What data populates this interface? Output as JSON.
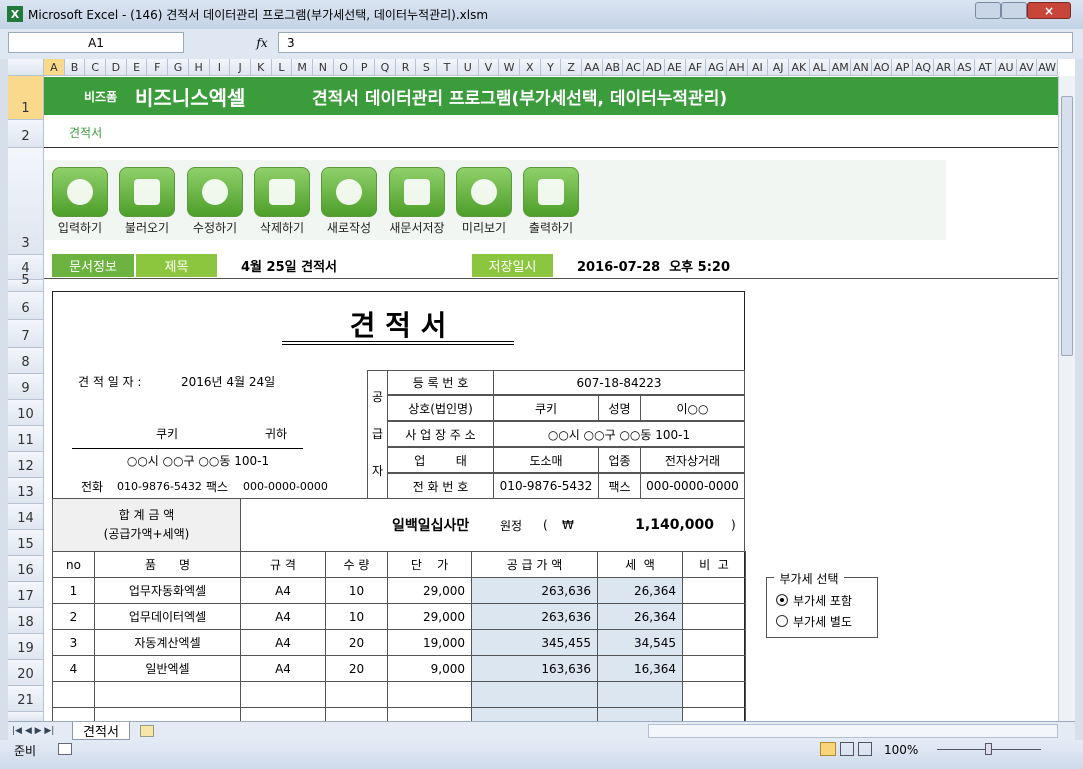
{
  "window": {
    "title": "Microsoft Excel - (146) 견적서 데이터관리 프로그램(부가세선택, 데이터누적관리).xlsm"
  },
  "formula_bar": {
    "cell": "A1",
    "fx": "fx",
    "value": "3"
  },
  "columns": [
    "A",
    "B",
    "C",
    "D",
    "E",
    "F",
    "G",
    "H",
    "I",
    "J",
    "K",
    "L",
    "M",
    "N",
    "O",
    "P",
    "Q",
    "R",
    "S",
    "T",
    "U",
    "V",
    "W",
    "X",
    "Y",
    "Z",
    "AA",
    "AB",
    "AC",
    "AD",
    "AE",
    "AF",
    "AG",
    "AH",
    "AI",
    "AJ",
    "AK",
    "AL",
    "AM",
    "AN",
    "AO",
    "AP",
    "AQ",
    "AR",
    "AS",
    "AT",
    "AU",
    "AV",
    "AW"
  ],
  "rows": [
    "1",
    "2",
    "3",
    "4",
    "5",
    "6",
    "7",
    "8",
    "9",
    "10",
    "11",
    "12",
    "13",
    "14",
    "15",
    "16",
    "17",
    "18",
    "19",
    "20",
    "21"
  ],
  "banner": {
    "brand_small": "비즈폼",
    "brand": "비즈니스엑셀",
    "title": "견적서 데이터관리 프로그램(부가세선택, 데이터누적관리)"
  },
  "breadcrumb": "견적서",
  "toolbar": [
    "입력하기",
    "불러오기",
    "수정하기",
    "삭제하기",
    "새로작성",
    "새문서저장",
    "미리보기",
    "출력하기"
  ],
  "info": {
    "doc_info": "문서정보",
    "subject_label": "제목",
    "subject": "4월 25일 견적서",
    "saved_label": "저장일시",
    "saved": "2016-07-28  오후 5:20"
  },
  "quote": {
    "title": "견 적 서",
    "date_label": "견 적 일 자 :",
    "date": "2016년 4월 24일",
    "client": "쿠키",
    "honorific": "귀하",
    "client_address": "○○시 ○○구 ○○동 100-1",
    "phone_label": "전화",
    "phone": "010-9876-5432",
    "fax_label": "팩스",
    "fax": "000-0000-0000",
    "supplier_label": [
      "공",
      "급",
      "자"
    ],
    "supplier": {
      "reg_label": "등 록 번 호",
      "reg": "607-18-84223",
      "company_label": "상호(법인명)",
      "company": "쿠키",
      "owner_label": "성명",
      "owner": "이○○",
      "address_label": "사 업 장 주 소",
      "address": "○○시 ○○구 ○○동 100-1",
      "biz_label": "업        태",
      "biz": "도소매",
      "item_label": "업종",
      "item": "전자상거래",
      "phone_label": "전 화 번 호",
      "phone": "010-9876-5432",
      "fax_label": "팩스",
      "fax": "000-0000-0000"
    },
    "total": {
      "label": "합 계 금 액",
      "sublabel": "(공급가액+세액)",
      "in_words": "일백일십사만",
      "suffix": "원정",
      "open": "(",
      "currency": "₩",
      "amount": "1,140,000",
      "close": ")"
    },
    "headers": [
      "no",
      "품      명",
      "규 격",
      "수 량",
      "단    가",
      "공 급 가 액",
      "세  액",
      "비  고"
    ],
    "items": [
      [
        "1",
        "업무자동화엑셀",
        "A4",
        "10",
        "29,000",
        "263,636",
        "26,364"
      ],
      [
        "2",
        "업무데이터엑셀",
        "A4",
        "10",
        "29,000",
        "263,636",
        "26,364"
      ],
      [
        "3",
        "자동계산엑셀",
        "A4",
        "20",
        "19,000",
        "345,455",
        "34,545"
      ],
      [
        "4",
        "일반엑셀",
        "A4",
        "20",
        "9,000",
        "163,636",
        "16,364"
      ]
    ]
  },
  "vat": {
    "legend": "부가세 선택",
    "options": [
      "부가세 포함",
      "부가세 별도"
    ],
    "selected": 0
  },
  "sheet_tab": "견적서",
  "status": {
    "ready": "준비",
    "zoom": "100%"
  }
}
